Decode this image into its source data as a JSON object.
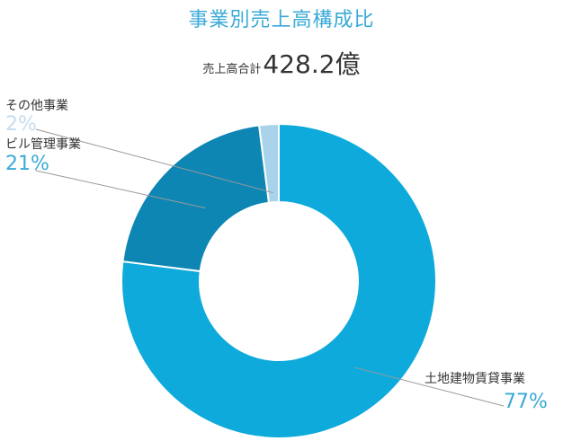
{
  "title": "事業別売上高構成比",
  "total": {
    "label": "売上高合計",
    "value": "428.2億"
  },
  "colors": {
    "title": "#3aaad6",
    "slice_main": "#0eaadc",
    "slice_building": "#0e86b3",
    "slice_other": "#a8d3ea",
    "pct_main": "#3aaad6",
    "pct_other": "#c5dcee"
  },
  "chart_data": {
    "type": "pie",
    "title": "事業別売上高構成比",
    "hole": true,
    "categories": [
      "土地建物賃貸事業",
      "ビル管理事業",
      "その他事業"
    ],
    "values": [
      77,
      21,
      2
    ],
    "value_labels": [
      "77%",
      "21%",
      "2%"
    ]
  }
}
